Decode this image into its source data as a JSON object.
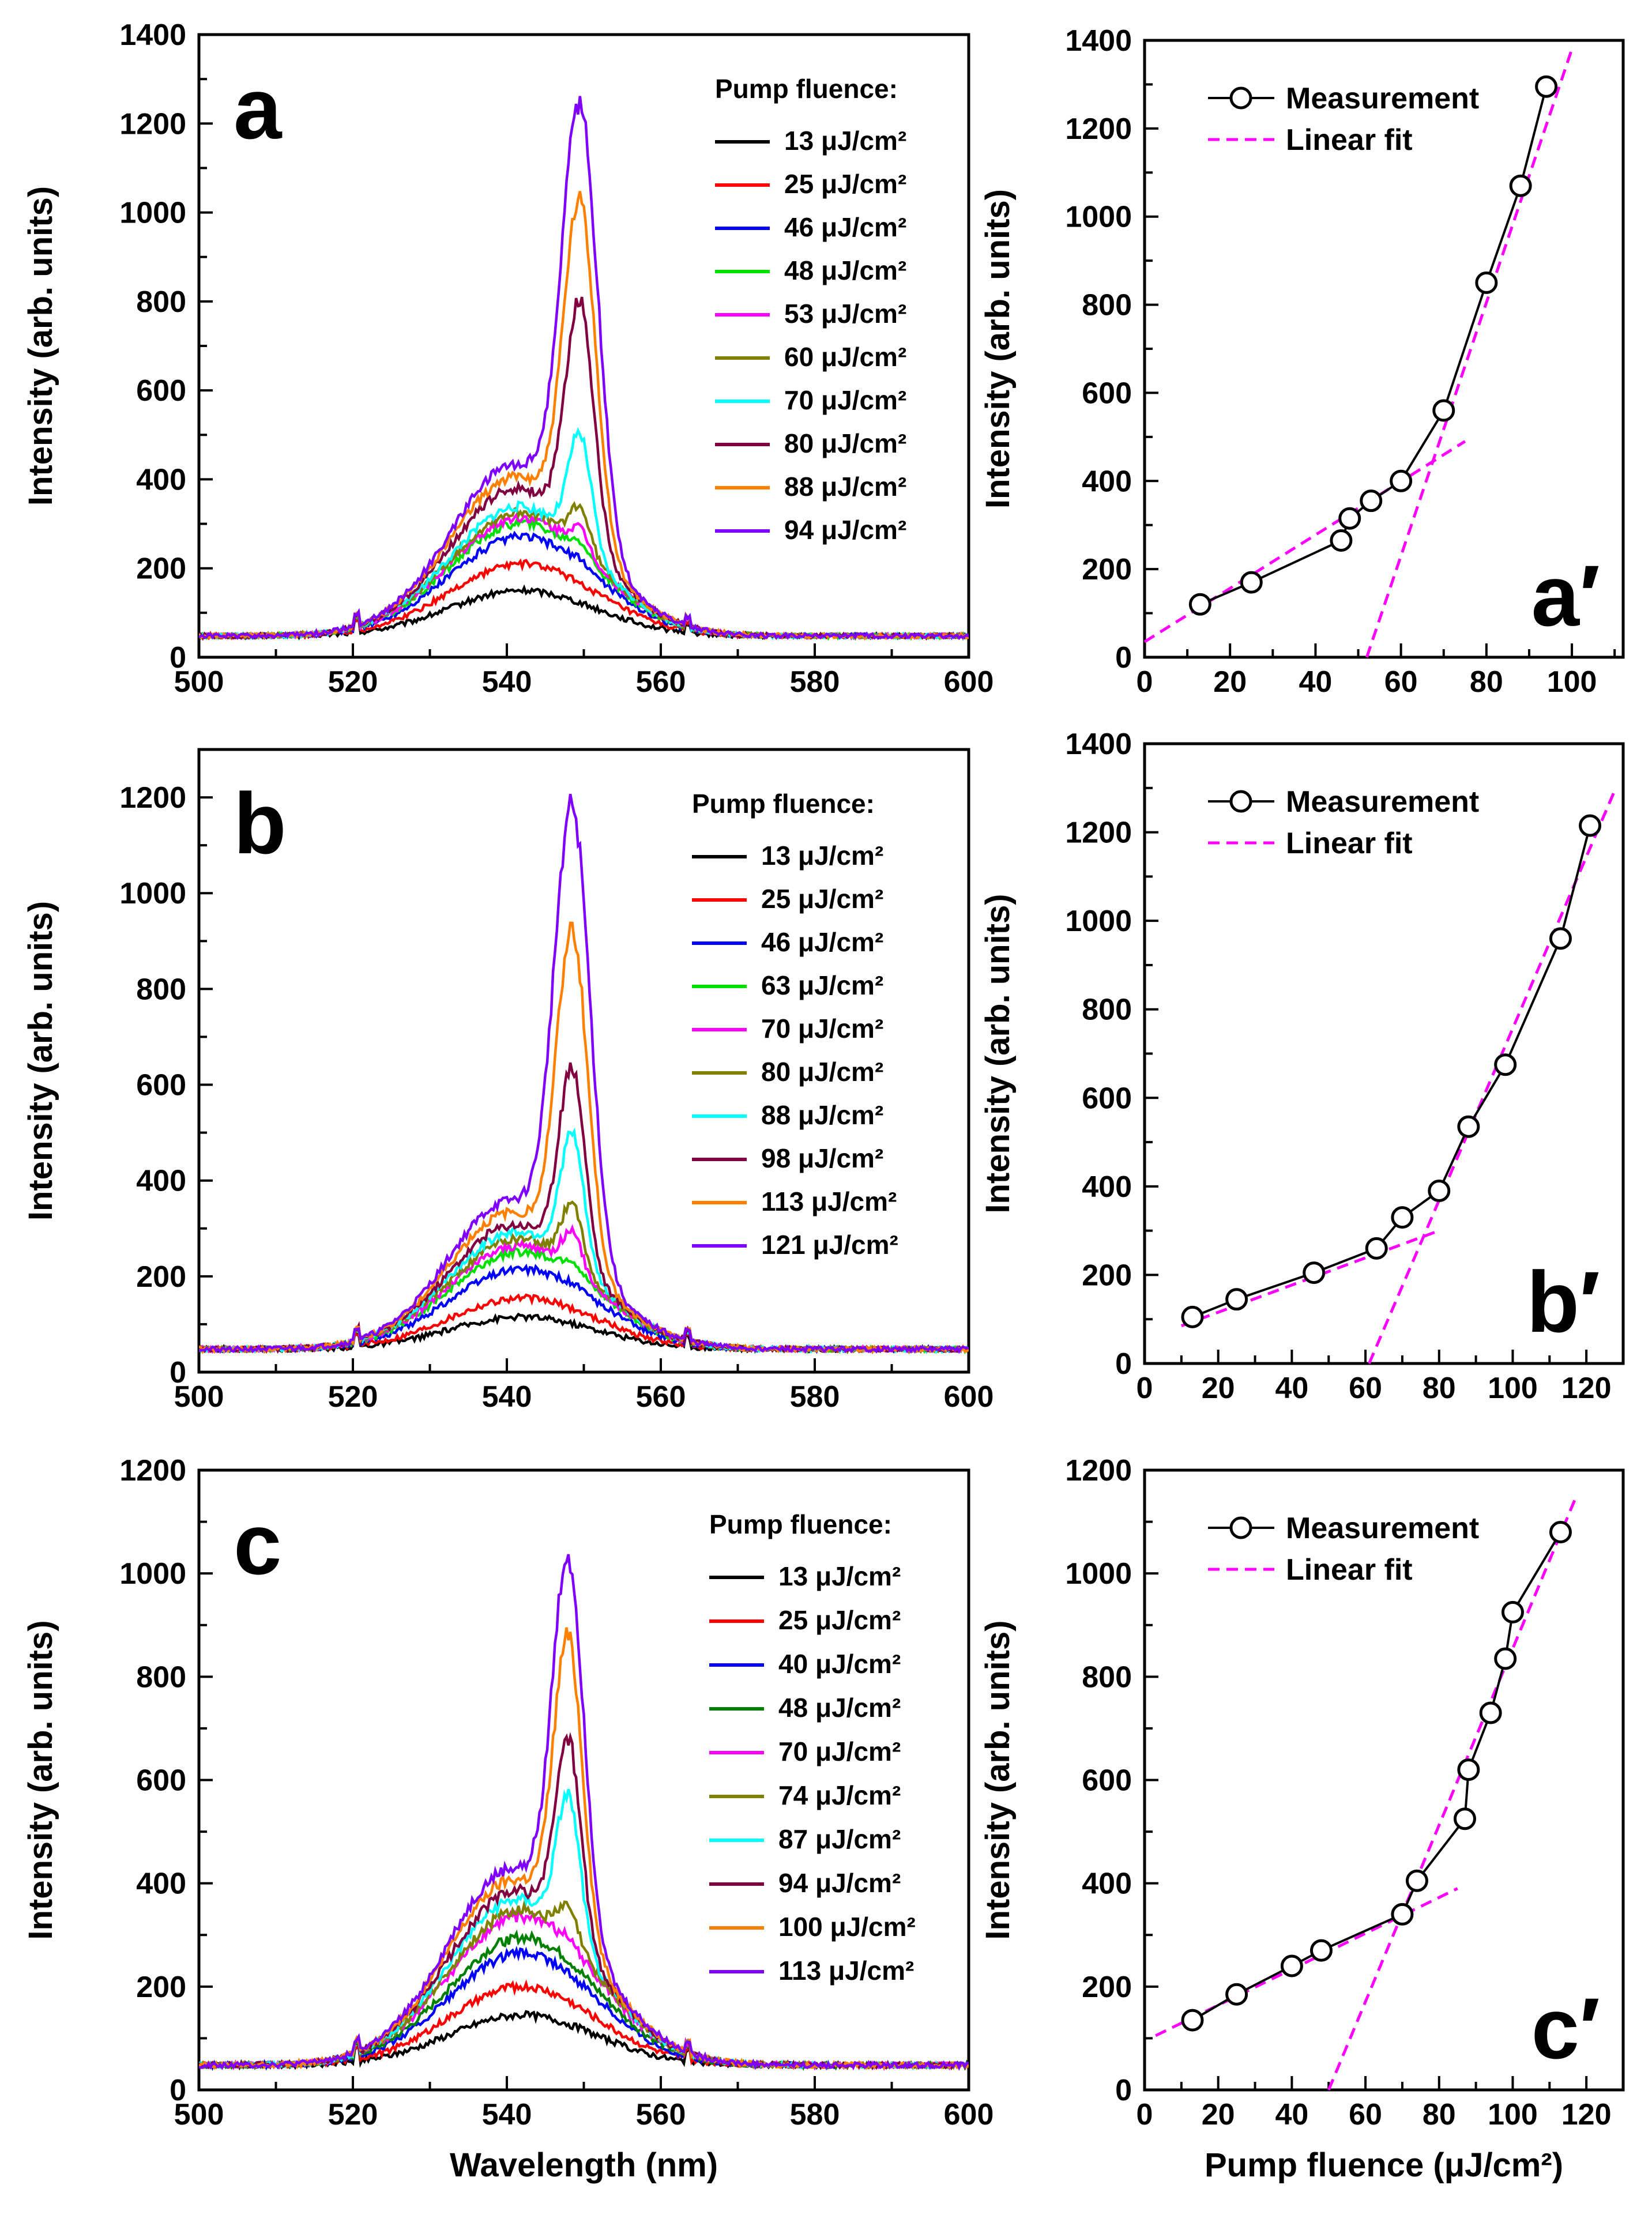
{
  "chart_data": [
    {
      "type": "line",
      "panel_label": "a",
      "ylabel": "Intensity (arb. units)",
      "xlabel": "",
      "xlim": [
        500,
        600
      ],
      "ylim": [
        0,
        1400
      ],
      "xticks": [
        "500",
        "520",
        "540",
        "560",
        "580",
        "600"
      ],
      "yticks": [
        "0",
        "200",
        "400",
        "600",
        "800",
        "1000",
        "1200",
        "1400"
      ],
      "legend_title": "Pump fluence:",
      "series": [
        {
          "name": "13 μJ/cm²",
          "color": "#000000",
          "peak": 150,
          "narrow": 0
        },
        {
          "name": "25 μJ/cm²",
          "color": "#ff0000",
          "peak": 210,
          "narrow": 0
        },
        {
          "name": "46 μJ/cm²",
          "color": "#0000ff",
          "peak": 270,
          "narrow": 10
        },
        {
          "name": "48 μJ/cm²",
          "color": "#00e000",
          "peak": 300,
          "narrow": 30
        },
        {
          "name": "53 μJ/cm²",
          "color": "#ff00ff",
          "peak": 310,
          "narrow": 50
        },
        {
          "name": "60 μJ/cm²",
          "color": "#808000",
          "peak": 320,
          "narrow": 90
        },
        {
          "name": "70 μJ/cm²",
          "color": "#00ffff",
          "peak": 320,
          "narrow": 250
        },
        {
          "name": "80 μJ/cm²",
          "color": "#800040",
          "peak": 340,
          "narrow": 530
        },
        {
          "name": "88 μJ/cm²",
          "color": "#ff8000",
          "peak": 350,
          "narrow": 740
        },
        {
          "name": "94 μJ/cm²",
          "color": "#8000ff",
          "peak": 360,
          "narrow": 950
        }
      ],
      "peak_center": 549.5
    },
    {
      "type": "scatter",
      "panel_label": "a′",
      "ylabel": "Intensity (arb. units)",
      "xlabel": "",
      "xlim": [
        0,
        112
      ],
      "ylim": [
        0,
        1400
      ],
      "xticks": [
        "0",
        "20",
        "40",
        "60",
        "80",
        "100"
      ],
      "yticks": [
        "0",
        "200",
        "400",
        "600",
        "800",
        "1000",
        "1200",
        "1400"
      ],
      "legend": [
        "Measurement",
        "Linear fit"
      ],
      "x": [
        13,
        25,
        46,
        48,
        53,
        60,
        70,
        80,
        88,
        94
      ],
      "y": [
        120,
        170,
        265,
        315,
        355,
        400,
        560,
        850,
        1070,
        1295
      ],
      "fits": [
        {
          "x": [
            0,
            75
          ],
          "y": [
            35,
            490
          ]
        },
        {
          "x": [
            52,
            100
          ],
          "y": [
            0,
            1380
          ]
        }
      ]
    },
    {
      "type": "line",
      "panel_label": "b",
      "ylabel": "Intensity (arb. units)",
      "xlabel": "",
      "xlim": [
        500,
        600
      ],
      "ylim": [
        0,
        1300
      ],
      "xticks": [
        "500",
        "520",
        "540",
        "560",
        "580",
        "600"
      ],
      "yticks": [
        "0",
        "200",
        "400",
        "600",
        "800",
        "1000",
        "1200"
      ],
      "legend_title": "Pump fluence:",
      "series": [
        {
          "name": "13 μJ/cm²",
          "color": "#000000",
          "peak": 115,
          "narrow": 0
        },
        {
          "name": "25 μJ/cm²",
          "color": "#ff0000",
          "peak": 155,
          "narrow": 0
        },
        {
          "name": "46 μJ/cm²",
          "color": "#0000ff",
          "peak": 215,
          "narrow": 5
        },
        {
          "name": "63 μJ/cm²",
          "color": "#00e000",
          "peak": 250,
          "narrow": 25
        },
        {
          "name": "70 μJ/cm²",
          "color": "#ff00ff",
          "peak": 260,
          "narrow": 75
        },
        {
          "name": "80 μJ/cm²",
          "color": "#808000",
          "peak": 270,
          "narrow": 125
        },
        {
          "name": "88 μJ/cm²",
          "color": "#00ffff",
          "peak": 275,
          "narrow": 265
        },
        {
          "name": "98 μJ/cm²",
          "color": "#800040",
          "peak": 280,
          "narrow": 400
        },
        {
          "name": "113 μJ/cm²",
          "color": "#ff8000",
          "peak": 285,
          "narrow": 675
        },
        {
          "name": "121 μJ/cm²",
          "color": "#8000ff",
          "peak": 290,
          "narrow": 925
        }
      ],
      "peak_center": 548.5
    },
    {
      "type": "scatter",
      "panel_label": "b′",
      "ylabel": "Intensity (arb. units)",
      "xlabel": "",
      "xlim": [
        0,
        130
      ],
      "ylim": [
        0,
        1400
      ],
      "xticks": [
        "0",
        "20",
        "40",
        "60",
        "80",
        "100",
        "120"
      ],
      "yticks": [
        "0",
        "200",
        "400",
        "600",
        "800",
        "1000",
        "1200",
        "1400"
      ],
      "legend": [
        "Measurement",
        "Linear fit"
      ],
      "x": [
        13,
        25,
        46,
        63,
        70,
        80,
        88,
        98,
        113,
        121
      ],
      "y": [
        105,
        145,
        205,
        260,
        330,
        390,
        535,
        675,
        960,
        1215
      ],
      "fits": [
        {
          "x": [
            10,
            80
          ],
          "y": [
            85,
            300
          ]
        },
        {
          "x": [
            61,
            128
          ],
          "y": [
            0,
            1300
          ]
        }
      ]
    },
    {
      "type": "line",
      "panel_label": "c",
      "ylabel": "Intensity (arb. units)",
      "xlabel": "Wavelength (nm)",
      "xlim": [
        500,
        600
      ],
      "ylim": [
        0,
        1200
      ],
      "xticks": [
        "500",
        "520",
        "540",
        "560",
        "580",
        "600"
      ],
      "yticks": [
        "0",
        "200",
        "400",
        "600",
        "800",
        "1000",
        "1200"
      ],
      "legend_title": "Pump fluence:",
      "series": [
        {
          "name": "13 μJ/cm²",
          "color": "#000000",
          "peak": 145,
          "narrow": 0
        },
        {
          "name": "25 μJ/cm²",
          "color": "#ff0000",
          "peak": 200,
          "narrow": 0
        },
        {
          "name": "40 μJ/cm²",
          "color": "#0000ff",
          "peak": 265,
          "narrow": 0
        },
        {
          "name": "48 μJ/cm²",
          "color": "#008000",
          "peak": 295,
          "narrow": 0
        },
        {
          "name": "70 μJ/cm²",
          "color": "#ff00ff",
          "peak": 335,
          "narrow": 10
        },
        {
          "name": "74 μJ/cm²",
          "color": "#808000",
          "peak": 345,
          "narrow": 60
        },
        {
          "name": "87 μJ/cm²",
          "color": "#00ffff",
          "peak": 350,
          "narrow": 270
        },
        {
          "name": "94 μJ/cm²",
          "color": "#800040",
          "peak": 360,
          "narrow": 370
        },
        {
          "name": "100 μJ/cm²",
          "color": "#ff8000",
          "peak": 370,
          "narrow": 555
        },
        {
          "name": "113 μJ/cm²",
          "color": "#8000ff",
          "peak": 380,
          "narrow": 700
        }
      ],
      "peak_center": 548
    },
    {
      "type": "scatter",
      "panel_label": "c′",
      "ylabel": "Intensity (arb. units)",
      "xlabel": "Pump fluence (μJ/cm²)",
      "xlim": [
        0,
        130
      ],
      "ylim": [
        0,
        1200
      ],
      "xticks": [
        "0",
        "20",
        "40",
        "60",
        "80",
        "100",
        "120"
      ],
      "yticks": [
        "0",
        "200",
        "400",
        "600",
        "800",
        "1000",
        "1200"
      ],
      "legend": [
        "Measurement",
        "Linear fit"
      ],
      "x": [
        13,
        25,
        40,
        48,
        70,
        74,
        87,
        88,
        94,
        98,
        100,
        113
      ],
      "y": [
        135,
        185,
        240,
        270,
        340,
        405,
        525,
        620,
        730,
        835,
        925,
        1080
      ],
      "fits": [
        {
          "x": [
            3,
            85
          ],
          "y": [
            105,
            390
          ]
        },
        {
          "x": [
            50,
            117
          ],
          "y": [
            0,
            1145
          ]
        }
      ]
    }
  ]
}
